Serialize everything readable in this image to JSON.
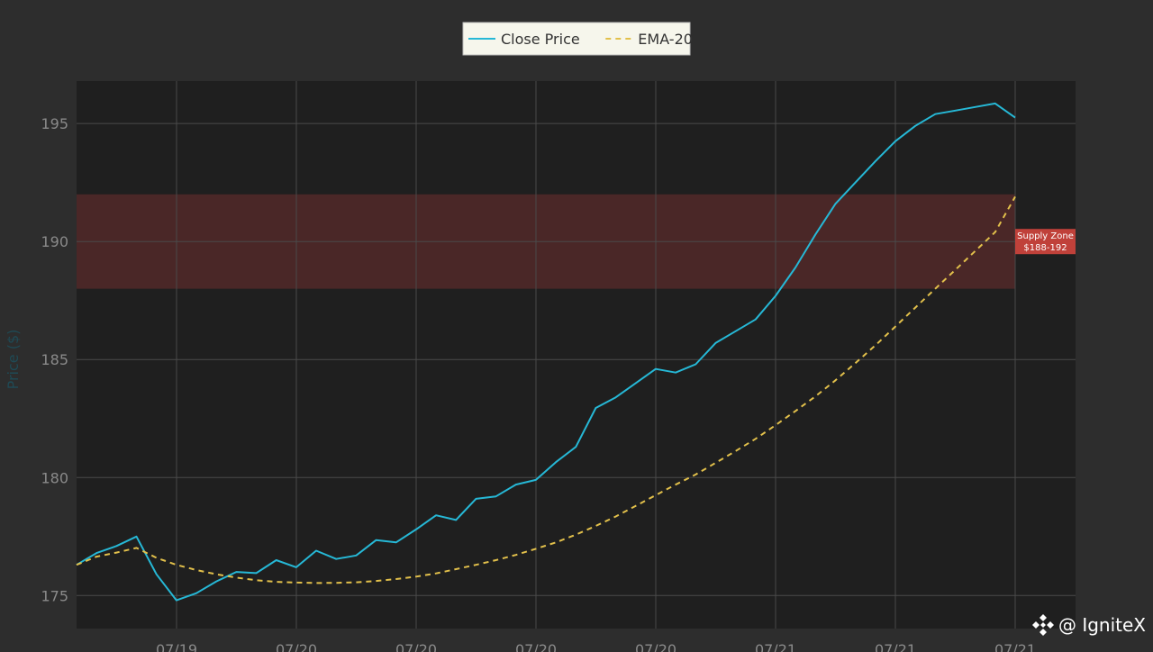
{
  "chart_data": {
    "type": "line",
    "title": "",
    "xlabel": "",
    "ylabel": "Price ($)",
    "ylim": [
      173.6,
      196.8
    ],
    "yticks": [
      175,
      180,
      185,
      190,
      195
    ],
    "grid": true,
    "legend_placement": "top-center",
    "x_tick_labels": [
      "07/19",
      "07/20",
      "07/20",
      "07/20",
      "07/20",
      "07/21",
      "07/21",
      "07/21"
    ],
    "series": [
      {
        "name": "Close Price",
        "style": "solid",
        "color": "#26b8d6",
        "values": [
          176.3,
          176.8,
          177.1,
          177.5,
          175.9,
          174.8,
          175.1,
          175.6,
          176.0,
          175.95,
          176.5,
          176.2,
          176.9,
          176.55,
          176.7,
          177.35,
          177.25,
          177.8,
          178.4,
          178.2,
          179.1,
          179.2,
          179.7,
          179.9,
          180.65,
          181.3,
          182.95,
          183.4,
          184.0,
          184.6,
          184.45,
          184.8,
          185.7,
          186.2,
          186.7,
          187.7,
          188.9,
          190.3,
          191.6,
          192.5,
          193.4,
          194.25,
          194.9,
          195.4,
          195.55,
          195.7,
          195.85,
          195.25
        ]
      },
      {
        "name": "EMA-20",
        "style": "dashed",
        "color": "#e2c04b",
        "values": [
          176.3,
          176.65,
          176.82,
          177.02,
          176.6,
          176.3,
          176.08,
          175.9,
          175.76,
          175.65,
          175.58,
          175.55,
          175.53,
          175.54,
          175.56,
          175.62,
          175.7,
          175.8,
          175.94,
          176.12,
          176.3,
          176.5,
          176.72,
          176.98,
          177.25,
          177.58,
          177.95,
          178.35,
          178.8,
          179.25,
          179.7,
          180.13,
          180.62,
          181.12,
          181.64,
          182.22,
          182.82,
          183.44,
          184.12,
          184.85,
          185.6,
          186.4,
          187.2,
          188.0,
          188.8,
          189.6,
          190.4,
          191.9
        ]
      }
    ],
    "annotations": [
      {
        "type": "zone",
        "y_range": [
          188,
          192
        ],
        "color": "#4a2727",
        "label_lines": [
          "Supply Zone",
          "$188-192"
        ],
        "label_color": "#c0413a"
      }
    ]
  },
  "watermark": {
    "text": "@ IgniteX",
    "icon": "diamond-logo-icon"
  },
  "colors": {
    "page_background": "#2d2d2d",
    "plot_background": "#1f1f1f",
    "grid": "#4a4a4a",
    "tick_text": "#8a8a8a",
    "ylabel_text": "#1f4a55",
    "legend_background": "#f6f6ec",
    "legend_border": "#bdbdbd"
  }
}
